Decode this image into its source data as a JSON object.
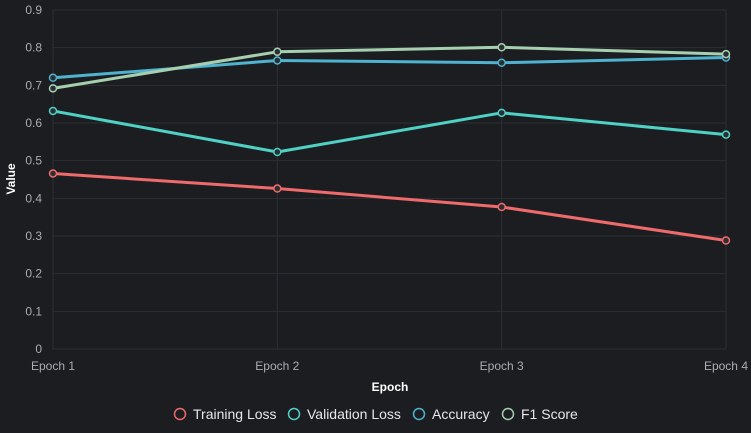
{
  "chart_data": {
    "type": "line",
    "title": "",
    "xlabel": "Epoch",
    "ylabel": "Value",
    "categories": [
      "Epoch 1",
      "Epoch 2",
      "Epoch 3",
      "Epoch 4"
    ],
    "ylim": [
      0,
      0.9
    ],
    "yticks": [
      "0",
      "0.1",
      "0.2",
      "0.3",
      "0.4",
      "0.5",
      "0.6",
      "0.7",
      "0.8",
      "0.9"
    ],
    "grid": true,
    "legend_position": "bottom",
    "series": [
      {
        "name": "Training Loss",
        "values": [
          0.466,
          0.426,
          0.377,
          0.288
        ],
        "color": "#ef6a6a"
      },
      {
        "name": "Validation Loss",
        "values": [
          0.632,
          0.523,
          0.627,
          0.569
        ],
        "color": "#4fd1c5"
      },
      {
        "name": "Accuracy",
        "values": [
          0.72,
          0.766,
          0.76,
          0.774
        ],
        "color": "#4fb3d0"
      },
      {
        "name": "F1 Score",
        "values": [
          0.692,
          0.789,
          0.801,
          0.783
        ],
        "color": "#a6cfb0"
      }
    ]
  }
}
